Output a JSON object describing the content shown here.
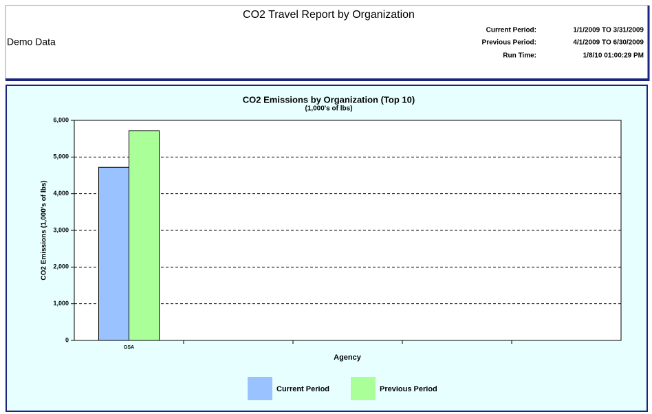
{
  "header": {
    "title": "CO2 Travel Report by Organization",
    "subtitle": "Demo Data",
    "info": [
      {
        "label": "Current Period:",
        "value": "1/1/2009 TO 3/31/2009"
      },
      {
        "label": "Previous Period:",
        "value": "4/1/2009 TO 6/30/2009"
      },
      {
        "label": "Run Time:",
        "value": "1/8/10 01:00:29 PM"
      }
    ]
  },
  "chart_data": {
    "type": "bar",
    "title": "CO2 Emissions by Organization (Top 10)",
    "subtitle": "(1,000's of lbs)",
    "x_label": "Agency",
    "y_label": "CO2 Emissions (1,000's of lbs)",
    "categories": [
      "GSA",
      null,
      null,
      null,
      null
    ],
    "series": [
      {
        "name": "Current Period",
        "color": "#99c2ff",
        "values": [
          4720,
          null,
          null,
          null,
          null
        ]
      },
      {
        "name": "Previous Period",
        "color": "#aaff99",
        "values": [
          5720,
          null,
          null,
          null,
          null
        ]
      }
    ],
    "ylim": [
      0,
      6000
    ],
    "yticks": [
      0,
      {
        "value": 1000,
        "label": "1,000"
      },
      {
        "value": 2000,
        "label": "2,000"
      },
      {
        "value": 3000,
        "label": "3,000"
      },
      {
        "value": 4000,
        "label": "4,000"
      },
      {
        "value": 5000,
        "label": "5,000"
      },
      {
        "value": 6000,
        "label": "6,000"
      }
    ],
    "grid": true,
    "legend": "bottom"
  }
}
